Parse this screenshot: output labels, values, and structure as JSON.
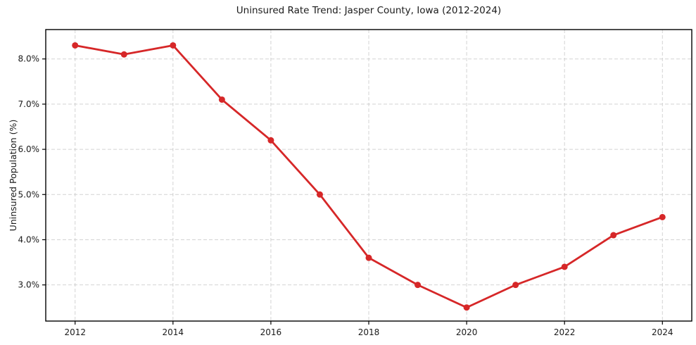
{
  "chart_data": {
    "type": "line",
    "title": "Uninsured Rate Trend: Jasper County, Iowa (2012-2024)",
    "xlabel": "",
    "ylabel": "Uninsured Population (%)",
    "x": [
      2012,
      2013,
      2014,
      2015,
      2016,
      2017,
      2018,
      2019,
      2020,
      2021,
      2022,
      2023,
      2024
    ],
    "values": [
      8.3,
      8.1,
      8.3,
      7.1,
      6.2,
      5.0,
      3.6,
      3.0,
      2.5,
      3.0,
      3.4,
      4.1,
      4.5
    ],
    "series_name": "Uninsured rate",
    "xticks": [
      2012,
      2014,
      2016,
      2018,
      2020,
      2022,
      2024
    ],
    "xtick_labels": [
      "2012",
      "2014",
      "2016",
      "2018",
      "2020",
      "2022",
      "2024"
    ],
    "yticks": [
      3.0,
      4.0,
      5.0,
      6.0,
      7.0,
      8.0
    ],
    "ytick_labels": [
      "3.0%",
      "4.0%",
      "5.0%",
      "6.0%",
      "7.0%",
      "8.0%"
    ],
    "xlim": [
      2011.4,
      2024.6
    ],
    "ylim": [
      2.2,
      8.65
    ],
    "grid": true,
    "legend": false,
    "line_color": "#d62728",
    "marker": "circle",
    "marker_radius": 4.5
  }
}
